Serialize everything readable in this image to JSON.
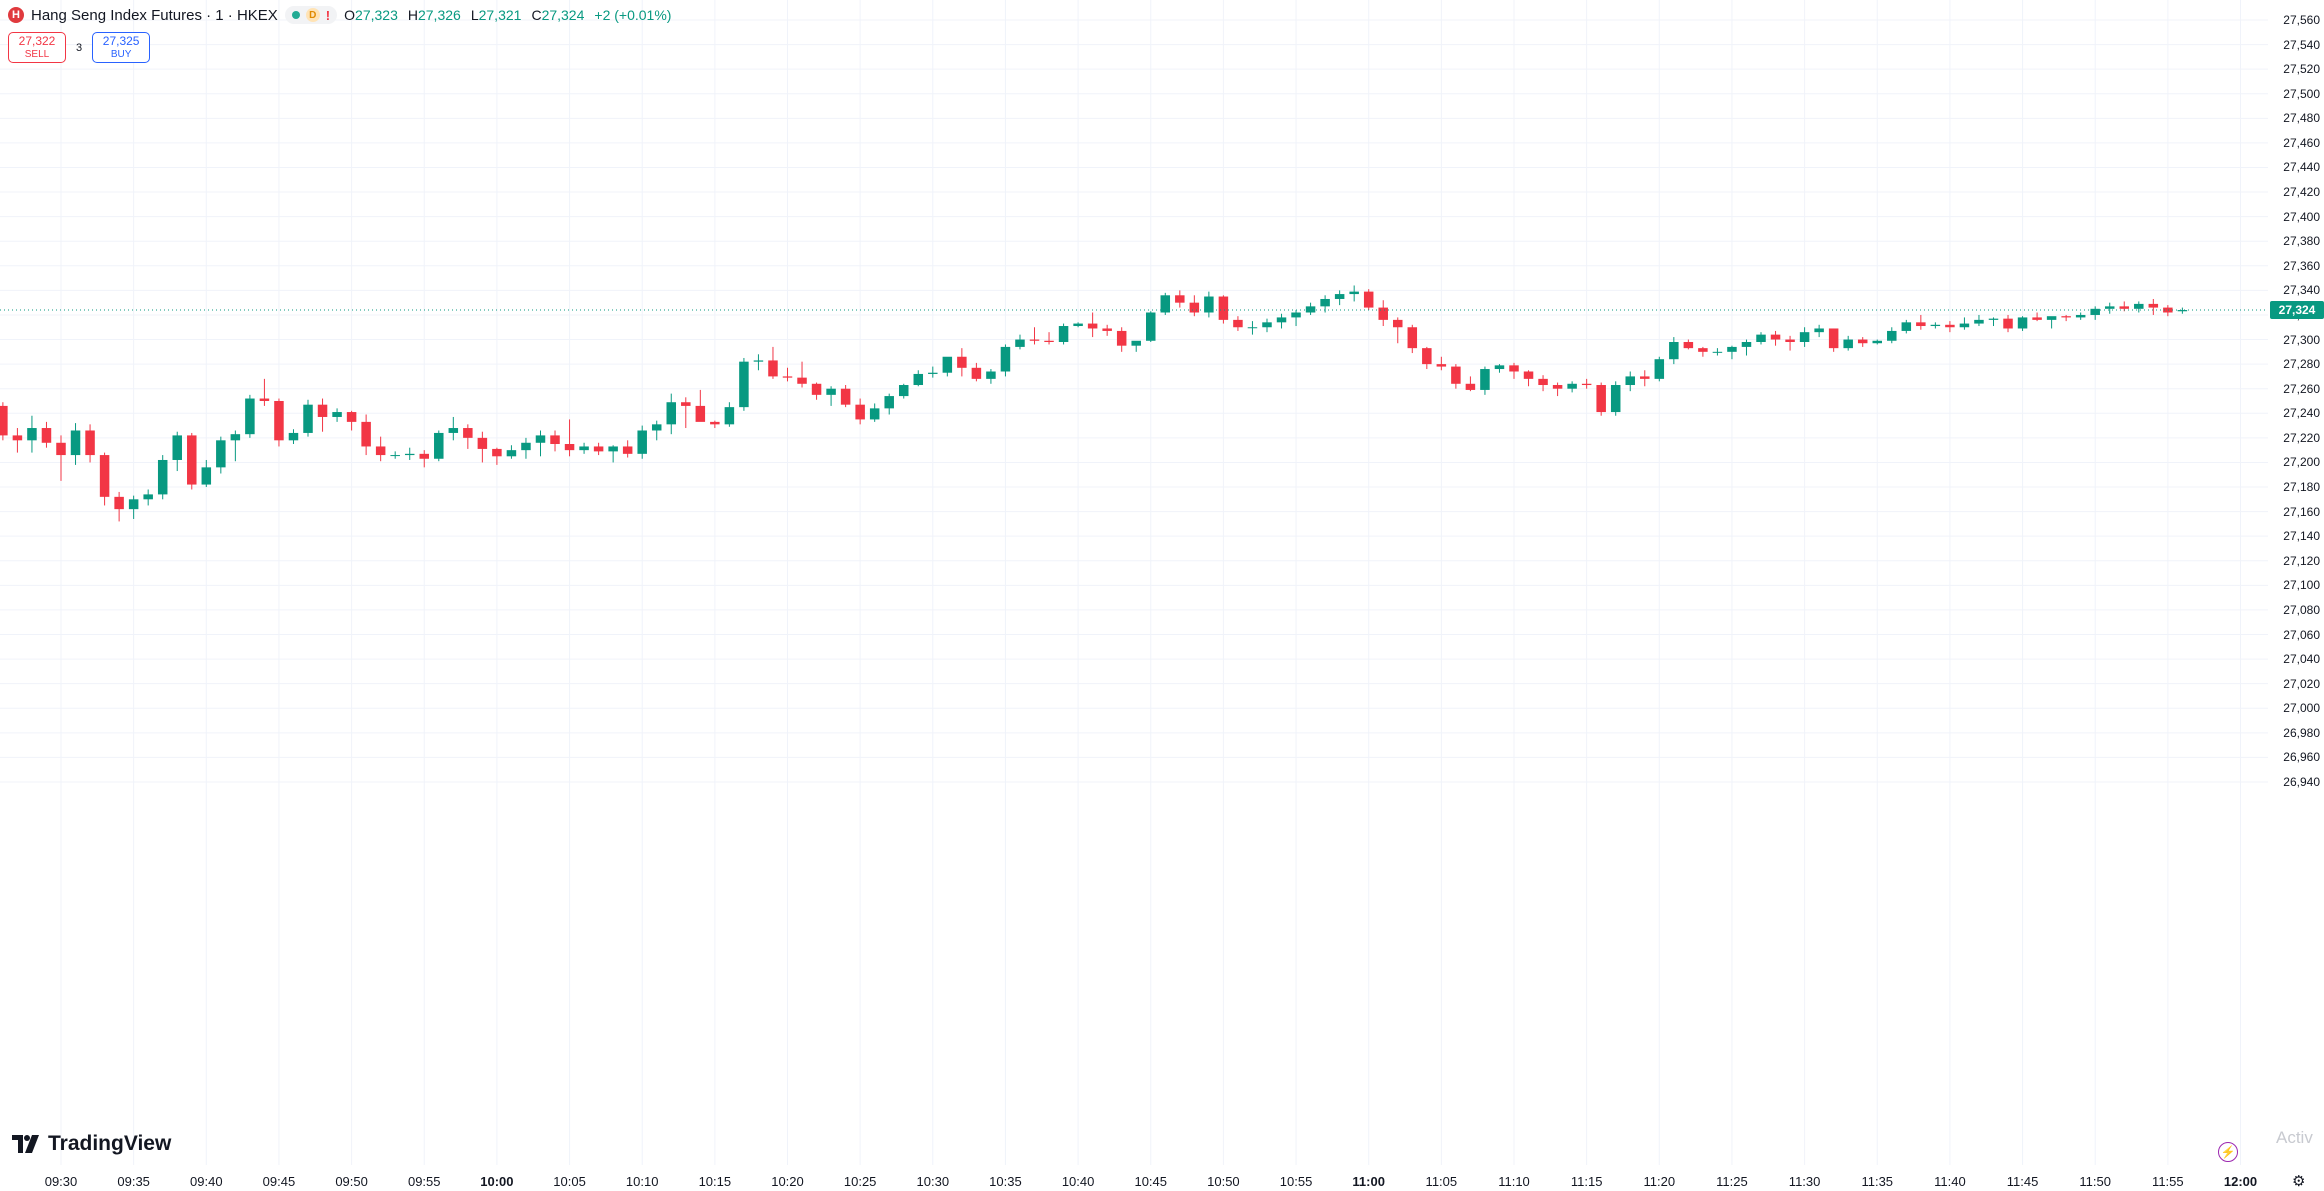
{
  "header": {
    "exchange_badge": "H",
    "title": "Hang Seng Index Futures · 1 · HKEX",
    "market_status_badge": "D",
    "alert_mark": "!",
    "ohlc": {
      "o_label": "O",
      "o": "27,323",
      "h_label": "H",
      "h": "27,326",
      "l_label": "L",
      "l": "27,321",
      "c_label": "C",
      "c": "27,324",
      "change": "+2 (+0.01%)"
    }
  },
  "trade": {
    "sell_price": "27,322",
    "sell_label": "SELL",
    "spread": "3",
    "buy_price": "27,325",
    "buy_label": "BUY"
  },
  "price_axis": {
    "labels": [
      "27,560",
      "27,540",
      "27,520",
      "27,500",
      "27,480",
      "27,460",
      "27,440",
      "27,420",
      "27,400",
      "27,380",
      "27,360",
      "27,340",
      "27,320",
      "27,300",
      "27,280",
      "27,260",
      "27,240",
      "27,220",
      "27,200",
      "27,180",
      "27,160",
      "27,140",
      "27,120",
      "27,100",
      "27,080",
      "27,060",
      "27,040",
      "27,020",
      "27,000",
      "26,980",
      "26,960",
      "26,940"
    ],
    "current_price_label": "27,324"
  },
  "time_axis": {
    "labels": [
      "09:30",
      "09:35",
      "09:40",
      "09:45",
      "09:50",
      "09:55",
      "10:00",
      "10:05",
      "10:10",
      "10:15",
      "10:20",
      "10:25",
      "10:30",
      "10:35",
      "10:40",
      "10:45",
      "10:50",
      "10:55",
      "11:00",
      "11:05",
      "11:10",
      "11:15",
      "11:20",
      "11:25",
      "11:30",
      "11:35",
      "11:40",
      "11:45",
      "11:50",
      "11:55",
      "12:00"
    ],
    "bold_labels": [
      "10:00",
      "11:00",
      "12:00"
    ]
  },
  "branding": {
    "logo_text": "TradingView",
    "logo_mark": "17"
  },
  "watermark": "Activ",
  "colors": {
    "up": "#089981",
    "down": "#f23645",
    "grid": "#f0f3fa",
    "price_line": "#089981"
  },
  "icons": {
    "bolt": "lightning-icon",
    "settings": "gear-icon"
  },
  "chart_data": {
    "type": "candlestick",
    "symbol": "Hang Seng Index Futures",
    "interval": "1",
    "exchange": "HKEX",
    "ylim": [
      26940,
      27560
    ],
    "last_price": 27324,
    "candles": [
      [
        27248,
        27253,
        27238,
        27243
      ],
      [
        27243,
        27262,
        27238,
        27258
      ],
      [
        27258,
        27263,
        27251,
        27261
      ],
      [
        27261,
        27266,
        27246,
        27251
      ],
      [
        27251,
        27256,
        27241,
        27246
      ],
      [
        27246,
        27249,
        27218,
        27222
      ],
      [
        27222,
        27228,
        27208,
        27218
      ],
      [
        27218,
        27238,
        27208,
        27228
      ],
      [
        27228,
        27233,
        27212,
        27216
      ],
      [
        27216,
        27222,
        27185,
        27206
      ],
      [
        27206,
        27232,
        27198,
        27226
      ],
      [
        27226,
        27231,
        27200,
        27206
      ],
      [
        27206,
        27208,
        27165,
        27172
      ],
      [
        27172,
        27176,
        27152,
        27162
      ],
      [
        27162,
        27173,
        27154,
        27170
      ],
      [
        27170,
        27178,
        27165,
        27174
      ],
      [
        27174,
        27206,
        27170,
        27202
      ],
      [
        27202,
        27225,
        27193,
        27222
      ],
      [
        27222,
        27224,
        27178,
        27182
      ],
      [
        27182,
        27202,
        27180,
        27196
      ],
      [
        27196,
        27221,
        27191,
        27218
      ],
      [
        27218,
        27226,
        27201,
        27223
      ],
      [
        27223,
        27255,
        27220,
        27252
      ],
      [
        27252,
        27268,
        27246,
        27250
      ],
      [
        27250,
        27252,
        27213,
        27218
      ],
      [
        27218,
        27227,
        27215,
        27224
      ],
      [
        27224,
        27251,
        27221,
        27247
      ],
      [
        27247,
        27252,
        27225,
        27237
      ],
      [
        27237,
        27244,
        27233,
        27241
      ],
      [
        27241,
        27242,
        27226,
        27233
      ],
      [
        27233,
        27239,
        27206,
        27213
      ],
      [
        27213,
        27221,
        27201,
        27206
      ],
      [
        27206,
        27209,
        27203,
        27206
      ],
      [
        27206,
        27212,
        27202,
        27207
      ],
      [
        27207,
        27210,
        27196,
        27203
      ],
      [
        27203,
        27226,
        27201,
        27224
      ],
      [
        27224,
        27237,
        27218,
        27228
      ],
      [
        27228,
        27231,
        27211,
        27220
      ],
      [
        27220,
        27225,
        27200,
        27211
      ],
      [
        27211,
        27212,
        27198,
        27205
      ],
      [
        27205,
        27214,
        27203,
        27210
      ],
      [
        27210,
        27220,
        27203,
        27216
      ],
      [
        27216,
        27226,
        27205,
        27222
      ],
      [
        27222,
        27226,
        27209,
        27215
      ],
      [
        27215,
        27235,
        27205,
        27210
      ],
      [
        27210,
        27216,
        27207,
        27213
      ],
      [
        27213,
        27216,
        27206,
        27209
      ],
      [
        27209,
        27214,
        27200,
        27213
      ],
      [
        27213,
        27218,
        27204,
        27207
      ],
      [
        27207,
        27230,
        27203,
        27226
      ],
      [
        27226,
        27234,
        27218,
        27231
      ],
      [
        27231,
        27256,
        27223,
        27249
      ],
      [
        27249,
        27253,
        27228,
        27246
      ],
      [
        27246,
        27259,
        27236,
        27233
      ],
      [
        27233,
        27234,
        27228,
        27231
      ],
      [
        27231,
        27249,
        27229,
        27245
      ],
      [
        27245,
        27285,
        27242,
        27282
      ],
      [
        27282,
        27288,
        27275,
        27283
      ],
      [
        27283,
        27294,
        27268,
        27270
      ],
      [
        27270,
        27277,
        27266,
        27269
      ],
      [
        27269,
        27282,
        27261,
        27264
      ],
      [
        27264,
        27265,
        27251,
        27255
      ],
      [
        27255,
        27262,
        27246,
        27260
      ],
      [
        27260,
        27263,
        27245,
        27247
      ],
      [
        27247,
        27252,
        27231,
        27235
      ],
      [
        27235,
        27248,
        27233,
        27244
      ],
      [
        27244,
        27256,
        27239,
        27254
      ],
      [
        27254,
        27264,
        27252,
        27263
      ],
      [
        27263,
        27275,
        27262,
        27272
      ],
      [
        27272,
        27278,
        27269,
        27273
      ],
      [
        27273,
        27285,
        27270,
        27286
      ],
      [
        27286,
        27293,
        27270,
        27277
      ],
      [
        27277,
        27281,
        27266,
        27268
      ],
      [
        27268,
        27276,
        27264,
        27274
      ],
      [
        27274,
        27296,
        27270,
        27294
      ],
      [
        27294,
        27304,
        27292,
        27300
      ],
      [
        27300,
        27310,
        27296,
        27299
      ],
      [
        27299,
        27306,
        27296,
        27298
      ],
      [
        27298,
        27313,
        27296,
        27311
      ],
      [
        27311,
        27314,
        27310,
        27313
      ],
      [
        27313,
        27322,
        27302,
        27309
      ],
      [
        27309,
        27312,
        27303,
        27307
      ],
      [
        27307,
        27310,
        27290,
        27295
      ],
      [
        27295,
        27298,
        27290,
        27299
      ],
      [
        27299,
        27323,
        27298,
        27322
      ],
      [
        27322,
        27338,
        27320,
        27336
      ],
      [
        27336,
        27340,
        27326,
        27330
      ],
      [
        27330,
        27336,
        27319,
        27322
      ],
      [
        27322,
        27339,
        27318,
        27335
      ],
      [
        27335,
        27336,
        27313,
        27316
      ],
      [
        27316,
        27319,
        27307,
        27310
      ],
      [
        27310,
        27315,
        27304,
        27310
      ],
      [
        27310,
        27317,
        27306,
        27314
      ],
      [
        27314,
        27321,
        27309,
        27318
      ],
      [
        27318,
        27324,
        27311,
        27322
      ],
      [
        27322,
        27330,
        27320,
        27327
      ],
      [
        27327,
        27336,
        27322,
        27333
      ],
      [
        27333,
        27340,
        27328,
        27337
      ],
      [
        27337,
        27344,
        27331,
        27339
      ],
      [
        27339,
        27341,
        27324,
        27326
      ],
      [
        27326,
        27332,
        27311,
        27316
      ],
      [
        27316,
        27318,
        27297,
        27310
      ],
      [
        27310,
        27312,
        27289,
        27293
      ],
      [
        27293,
        27294,
        27276,
        27280
      ],
      [
        27280,
        27286,
        27275,
        27278
      ],
      [
        27278,
        27280,
        27260,
        27264
      ],
      [
        27264,
        27270,
        27258,
        27259
      ],
      [
        27259,
        27278,
        27255,
        27276
      ],
      [
        27276,
        27280,
        27273,
        27279
      ],
      [
        27279,
        27281,
        27268,
        27274
      ],
      [
        27274,
        27275,
        27262,
        27268
      ],
      [
        27268,
        27271,
        27258,
        27263
      ],
      [
        27263,
        27265,
        27254,
        27260
      ],
      [
        27260,
        27266,
        27257,
        27264
      ],
      [
        27264,
        27268,
        27260,
        27263
      ],
      [
        27263,
        27265,
        27238,
        27241
      ],
      [
        27241,
        27266,
        27238,
        27263
      ],
      [
        27263,
        27274,
        27258,
        27270
      ],
      [
        27270,
        27275,
        27262,
        27268
      ],
      [
        27268,
        27286,
        27266,
        27284
      ],
      [
        27284,
        27302,
        27280,
        27298
      ],
      [
        27298,
        27300,
        27292,
        27293
      ],
      [
        27293,
        27294,
        27286,
        27290
      ],
      [
        27290,
        27293,
        27287,
        27290
      ],
      [
        27290,
        27295,
        27284,
        27294
      ],
      [
        27294,
        27300,
        27287,
        27298
      ],
      [
        27298,
        27306,
        27296,
        27304
      ],
      [
        27304,
        27307,
        27295,
        27300
      ],
      [
        27300,
        27303,
        27291,
        27298
      ],
      [
        27298,
        27310,
        27294,
        27306
      ],
      [
        27306,
        27312,
        27302,
        27309
      ],
      [
        27309,
        27309,
        27290,
        27293
      ],
      [
        27293,
        27303,
        27291,
        27300
      ],
      [
        27300,
        27302,
        27294,
        27297
      ],
      [
        27297,
        27300,
        27296,
        27299
      ],
      [
        27299,
        27310,
        27297,
        27307
      ],
      [
        27307,
        27316,
        27305,
        27314
      ],
      [
        27314,
        27320,
        27308,
        27311
      ],
      [
        27311,
        27314,
        27309,
        27312
      ],
      [
        27312,
        27315,
        27306,
        27310
      ],
      [
        27310,
        27318,
        27308,
        27313
      ],
      [
        27313,
        27320,
        27311,
        27316
      ],
      [
        27316,
        27318,
        27311,
        27317
      ],
      [
        27317,
        27320,
        27306,
        27309
      ],
      [
        27309,
        27319,
        27307,
        27318
      ],
      [
        27318,
        27322,
        27315,
        27316
      ],
      [
        27316,
        27318,
        27309,
        27319
      ],
      [
        27319,
        27320,
        27315,
        27318
      ],
      [
        27318,
        27322,
        27316,
        27320
      ],
      [
        27320,
        27327,
        27316,
        27325
      ],
      [
        27325,
        27330,
        27321,
        27327
      ],
      [
        27327,
        27331,
        27323,
        27325
      ],
      [
        27325,
        27331,
        27322,
        27329
      ],
      [
        27329,
        27333,
        27320,
        27326
      ],
      [
        27326,
        27328,
        27319,
        27322
      ],
      [
        27323,
        27326,
        27321,
        27324
      ]
    ]
  }
}
